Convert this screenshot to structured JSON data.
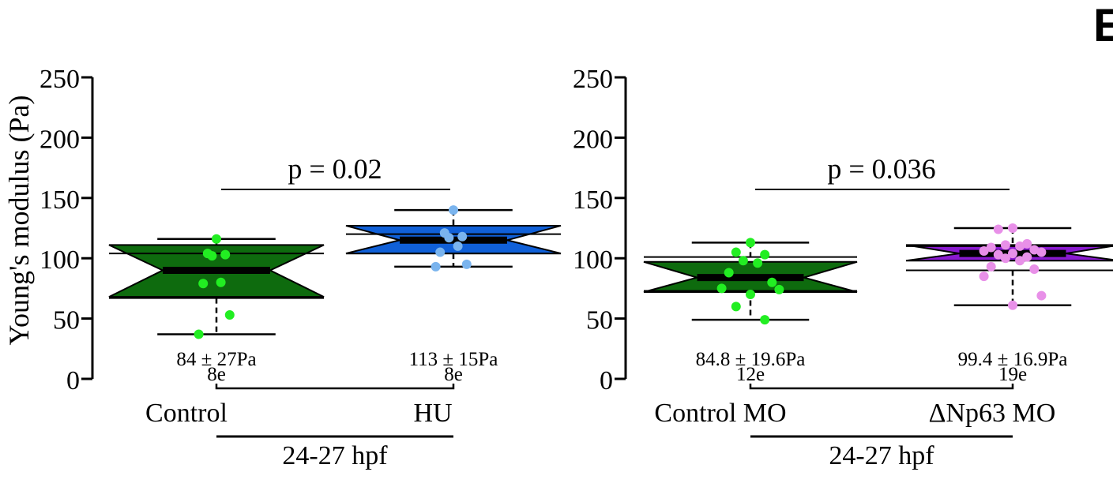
{
  "panel_letter": "E",
  "chart_data": [
    {
      "type": "box",
      "ylabel": "Young's modulus (Pa)",
      "ylim": [
        0,
        250
      ],
      "yticks": [
        0,
        50,
        100,
        150,
        200,
        250
      ],
      "group_label": "24-27  hpf",
      "comparison": "p = 0.02",
      "groups": [
        {
          "name": "Control",
          "color": "#0e6b0e",
          "point_color": "#22ee22",
          "summary": "84 ± 27Pa",
          "n": "8e",
          "whisker_low": 37,
          "q1": 67,
          "median": 90,
          "q3": 104,
          "whisker_high": 116,
          "notch_low": 68,
          "notch_high": 111,
          "points": [
            116,
            104,
            103,
            102,
            80,
            79,
            53,
            37
          ]
        },
        {
          "name": "HU",
          "color": "#1060d8",
          "point_color": "#7ab4ee",
          "summary": "113 ± 15Pa",
          "n": "8e",
          "whisker_low": 93,
          "q1": 104,
          "median": 115,
          "q3": 120,
          "whisker_high": 140,
          "notch_low": 104,
          "notch_high": 127,
          "points": [
            140,
            121,
            118,
            117,
            110,
            105,
            95,
            93
          ]
        }
      ]
    },
    {
      "type": "box",
      "ylabel": "",
      "ylim": [
        0,
        250
      ],
      "yticks": [
        0,
        50,
        100,
        150,
        200,
        250
      ],
      "group_label": "24-27 hpf",
      "comparison": "p = 0.036",
      "groups": [
        {
          "name": "Control MO",
          "color": "#0e6b0e",
          "point_color": "#22ee22",
          "summary": "84.8 ± 19.6Pa",
          "n": "12e",
          "whisker_low": 49,
          "q1": 73,
          "median": 84,
          "q3": 101,
          "whisker_high": 113,
          "notch_low": 72,
          "notch_high": 97,
          "points": [
            113,
            105,
            103,
            98,
            96,
            88,
            80,
            75,
            74,
            70,
            60,
            49
          ]
        },
        {
          "name": "ΔNp63 MO",
          "color": "#8a1ad0",
          "point_color": "#e890e8",
          "summary": "99.4 ± 16.9Pa",
          "n": "19e",
          "whisker_low": 61,
          "q1": 90,
          "median": 104,
          "q3": 110,
          "whisker_high": 125,
          "notch_low": 98,
          "notch_high": 111,
          "points": [
            125,
            124,
            112,
            111,
            110,
            109,
            107,
            106,
            105,
            104,
            103,
            101,
            100,
            98,
            93,
            91,
            85,
            69,
            61
          ]
        }
      ]
    }
  ]
}
